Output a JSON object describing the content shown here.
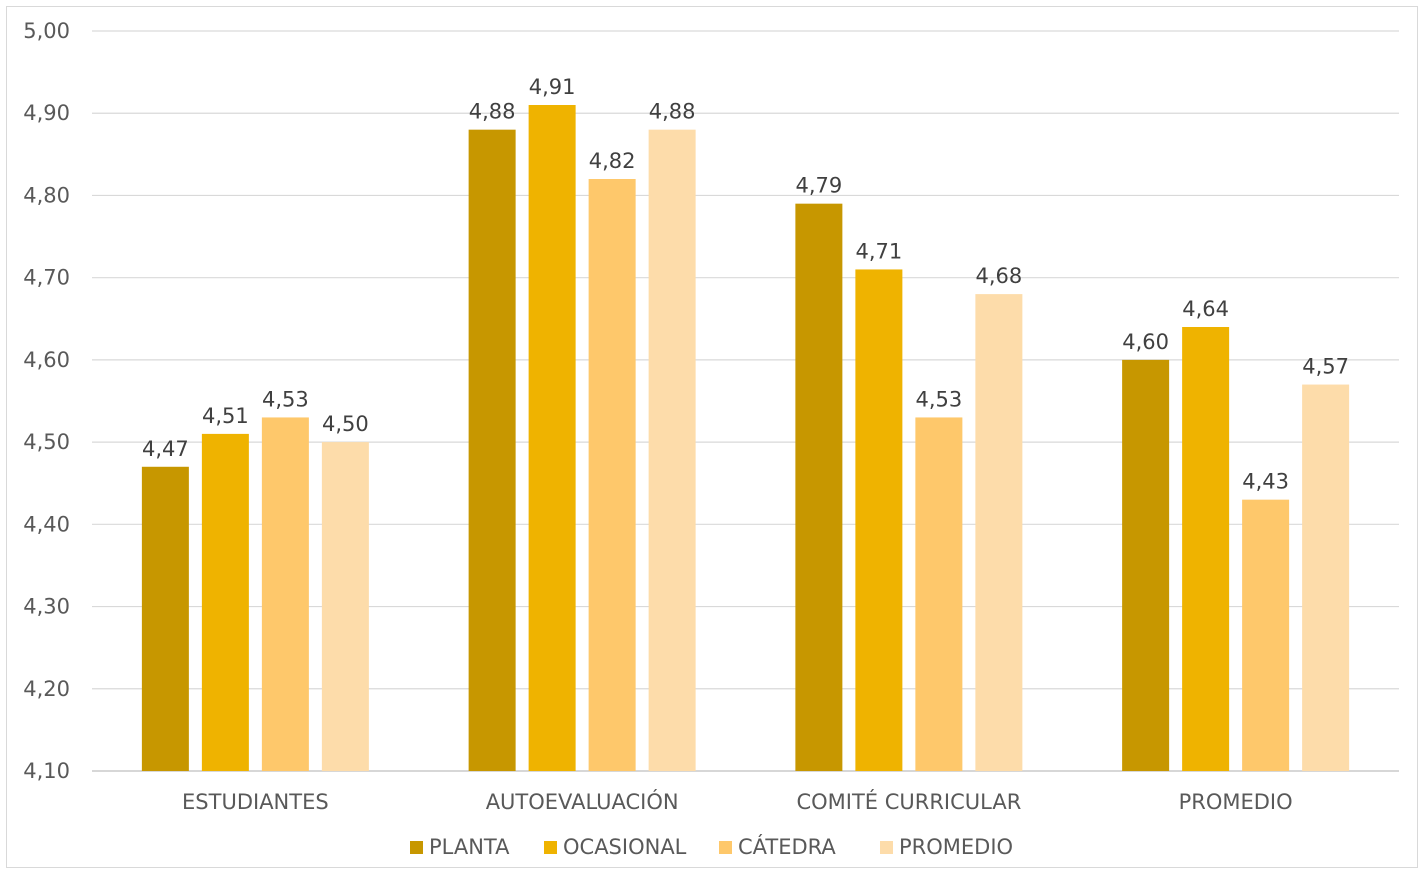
{
  "chart_data": {
    "type": "bar",
    "title": "",
    "xlabel": "",
    "ylabel": "",
    "ylim": [
      4.1,
      5.0
    ],
    "yticks": [
      "4,10",
      "4,20",
      "4,30",
      "4,40",
      "4,50",
      "4,60",
      "4,70",
      "4,80",
      "4,90",
      "5,00"
    ],
    "grid": true,
    "legend_position": "bottom",
    "categories": [
      "ESTUDIANTES",
      "AUTOEVALUACIÓN",
      "COMITÉ CURRICULAR",
      "PROMEDIO"
    ],
    "series": [
      {
        "name": "PLANTA",
        "color": "#c79700",
        "values": [
          4.47,
          4.88,
          4.79,
          4.6
        ],
        "labels": [
          "4,47",
          "4,88",
          "4,79",
          "4,60"
        ]
      },
      {
        "name": "OCASIONAL",
        "color": "#efb300",
        "values": [
          4.51,
          4.91,
          4.71,
          4.64
        ],
        "labels": [
          "4,51",
          "4,91",
          "4,71",
          "4,64"
        ]
      },
      {
        "name": "CÁTEDRA",
        "color": "#fec86b",
        "values": [
          4.53,
          4.82,
          4.53,
          4.43
        ],
        "labels": [
          "4,53",
          "4,82",
          "4,53",
          "4,43"
        ]
      },
      {
        "name": "PROMEDIO",
        "color": "#fddcaa",
        "values": [
          4.5,
          4.88,
          4.68,
          4.57
        ],
        "labels": [
          "4,50",
          "4,88",
          "4,68",
          "4,57"
        ]
      }
    ]
  }
}
